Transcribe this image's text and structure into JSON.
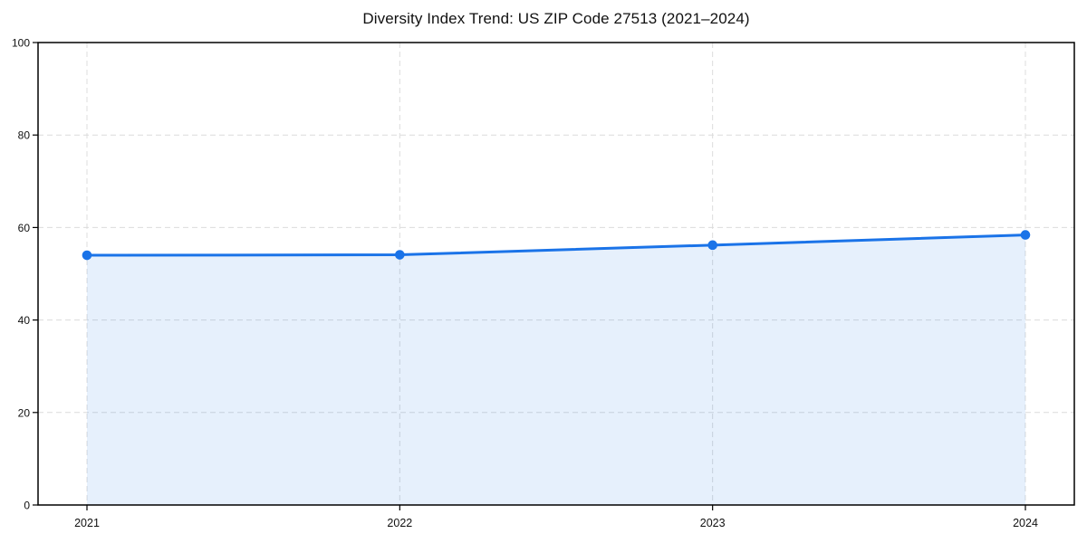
{
  "page": {
    "background": "#ffffff"
  },
  "chart_data": {
    "type": "area",
    "title": "Diversity Index Trend: US ZIP Code 27513 (2021–2024)",
    "categories": [
      "2021",
      "2022",
      "2023",
      "2024"
    ],
    "series": [
      {
        "name": "Diversity Index",
        "values": [
          54.0,
          54.1,
          56.2,
          58.4
        ]
      }
    ],
    "xlabel": "",
    "ylabel": "",
    "ylim": [
      0,
      100
    ],
    "yticks": [
      0,
      20,
      40,
      60,
      80,
      100
    ],
    "grid": true,
    "grid_style": "dashed",
    "legend_position": "none",
    "marker": "circle",
    "colors": {
      "line": "#1a73e8",
      "marker": "#1a73e8",
      "fill": "rgba(26, 115, 232, 0.11)",
      "grid": "#dcdcdc",
      "axis": "#000000",
      "tick_text": "#111111",
      "title_text": "#111111",
      "background": "#ffffff"
    }
  }
}
